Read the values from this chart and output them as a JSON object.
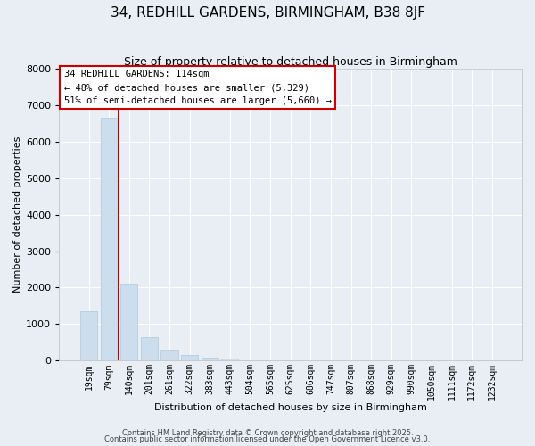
{
  "title": "34, REDHILL GARDENS, BIRMINGHAM, B38 8JF",
  "subtitle": "Size of property relative to detached houses in Birmingham",
  "xlabel": "Distribution of detached houses by size in Birmingham",
  "ylabel": "Number of detached properties",
  "categories": [
    "19sqm",
    "79sqm",
    "140sqm",
    "201sqm",
    "261sqm",
    "322sqm",
    "383sqm",
    "443sqm",
    "504sqm",
    "565sqm",
    "625sqm",
    "686sqm",
    "747sqm",
    "807sqm",
    "868sqm",
    "929sqm",
    "990sqm",
    "1050sqm",
    "1111sqm",
    "1172sqm",
    "1232sqm"
  ],
  "values": [
    1350,
    6650,
    2100,
    640,
    310,
    155,
    80,
    70,
    0,
    0,
    0,
    0,
    0,
    0,
    0,
    0,
    0,
    0,
    0,
    0,
    0
  ],
  "bar_color": "#ccdded",
  "bar_edge_color": "#b0c8dc",
  "vline_x_index": 1.5,
  "vline_color": "#cc0000",
  "ylim": [
    0,
    8000
  ],
  "yticks": [
    0,
    1000,
    2000,
    3000,
    4000,
    5000,
    6000,
    7000,
    8000
  ],
  "annotation_title": "34 REDHILL GARDENS: 114sqm",
  "annotation_line2": "← 48% of detached houses are smaller (5,329)",
  "annotation_line3": "51% of semi-detached houses are larger (5,660) →",
  "annotation_box_facecolor": "#ffffff",
  "annotation_box_edgecolor": "#cc0000",
  "footer1": "Contains HM Land Registry data © Crown copyright and database right 2025.",
  "footer2": "Contains public sector information licensed under the Open Government Licence v3.0.",
  "bg_color": "#e8eef4",
  "plot_bg_color": "#e8eef4",
  "grid_color": "#ffffff",
  "title_fontsize": 11,
  "subtitle_fontsize": 9,
  "ylabel_fontsize": 8,
  "xlabel_fontsize": 8,
  "tick_fontsize": 7,
  "annot_fontsize": 7.5,
  "footer_fontsize": 6
}
